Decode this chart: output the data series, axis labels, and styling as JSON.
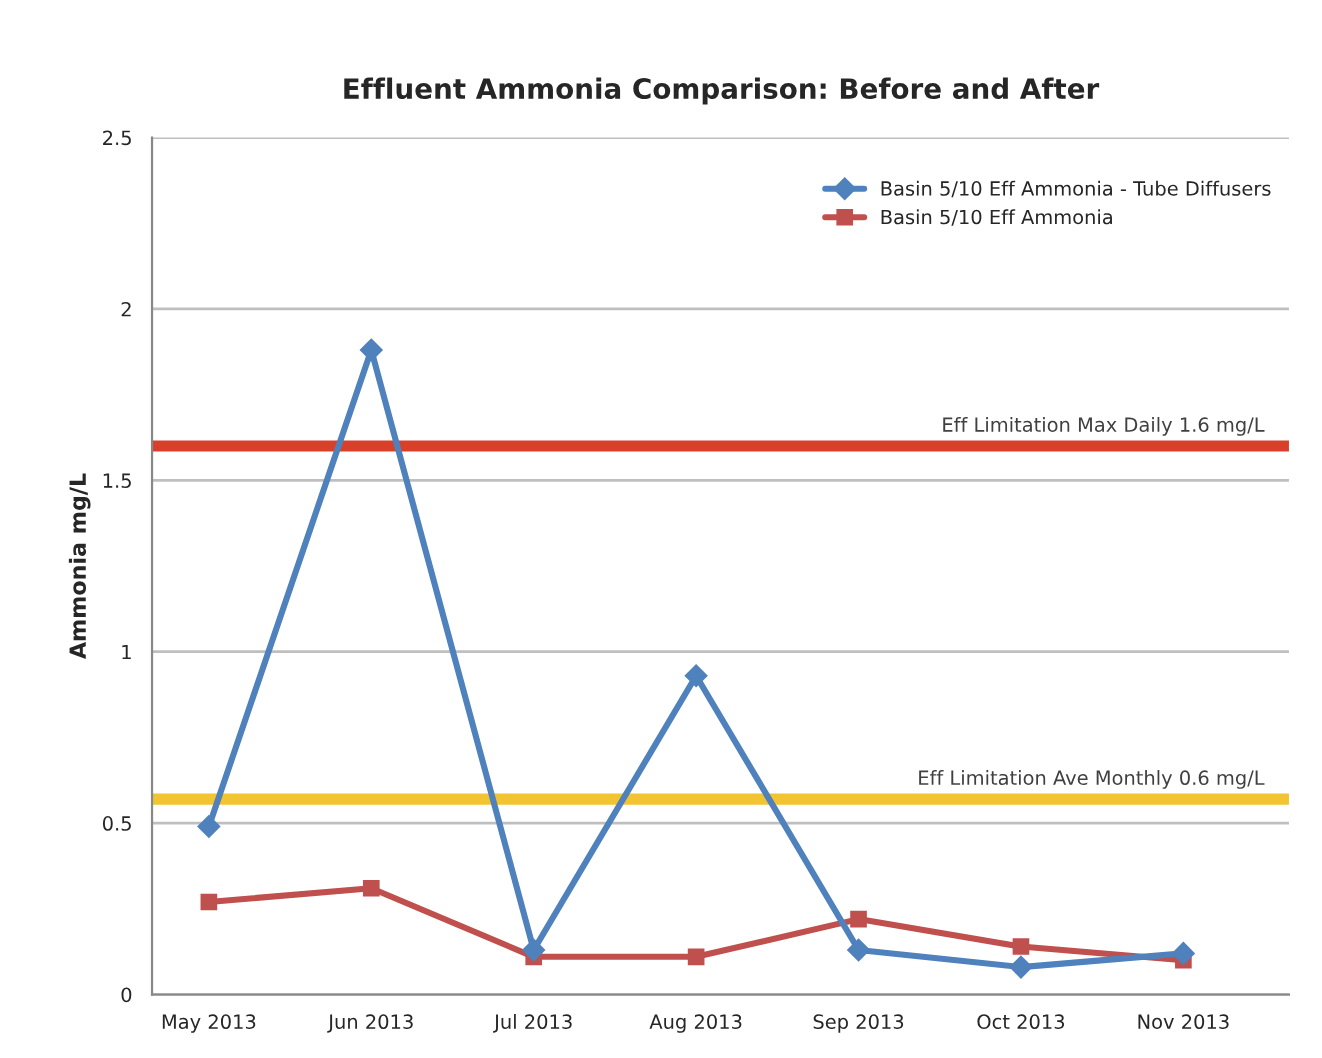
{
  "chart_data": {
    "type": "line",
    "title": "Effluent Ammonia Comparison: Before and After",
    "ylabel": "Ammonia mg/L",
    "categories": [
      "May 2013",
      "Jun 2013",
      "Jul 2013",
      "Aug 2013",
      "Sep 2013",
      "Oct 2013",
      "Nov 2013"
    ],
    "series": [
      {
        "name": "Basin 5/10 Eff Ammonia - Tube Diffusers",
        "color": "#4f81bd",
        "marker": "diamond",
        "values": [
          0.49,
          1.88,
          0.13,
          0.93,
          0.13,
          0.08,
          0.12
        ]
      },
      {
        "name": "Basin 5/10 Eff Ammonia",
        "color": "#c0504d",
        "marker": "square",
        "values": [
          0.27,
          0.31,
          0.11,
          0.11,
          0.22,
          0.14,
          0.1
        ]
      }
    ],
    "ylim": [
      0,
      2.5
    ],
    "yticks": [
      0,
      0.5,
      1,
      1.5,
      2,
      2.5
    ],
    "ref_lines": [
      {
        "axis": "y",
        "value": 1.6,
        "label": "Eff Limitation Max Daily 1.6 mg/L",
        "color": "#d9402b"
      },
      {
        "axis": "y",
        "value": 0.57,
        "label": "Eff Limitation Ave Monthly 0.6 mg/L",
        "color": "#f2c431"
      }
    ],
    "grid": "y",
    "legend": "top right"
  }
}
